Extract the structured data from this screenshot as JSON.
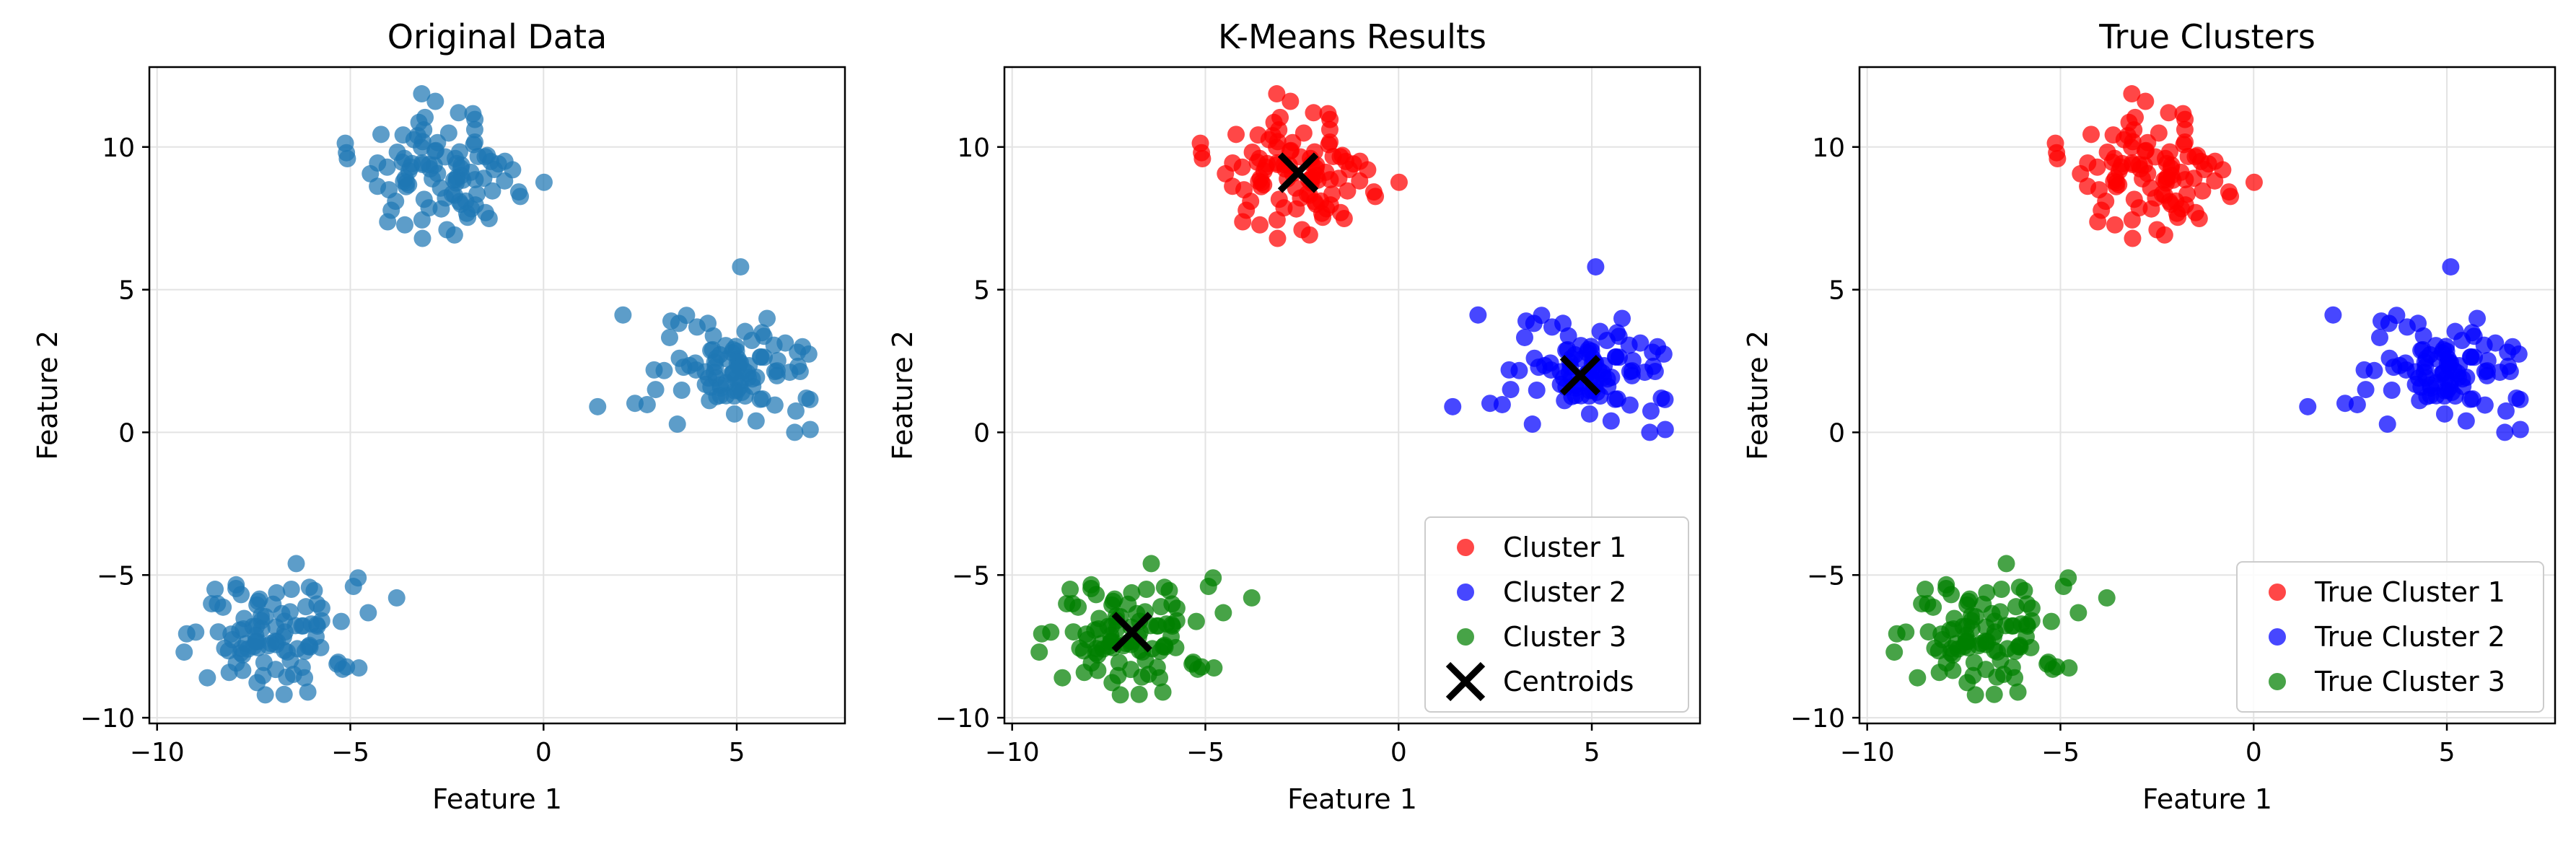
{
  "chart_data": [
    {
      "type": "scatter",
      "title": "Original Data",
      "xlabel": "Feature 1",
      "ylabel": "Feature 2",
      "xlim": [
        -10.2,
        7.8
      ],
      "ylim": [
        -10.2,
        12.8
      ],
      "xticks": [
        -10,
        -5,
        0,
        5
      ],
      "yticks": [
        -10,
        -5,
        0,
        5,
        10
      ],
      "xtick_labels": [
        "−10",
        "−5",
        "0",
        "5"
      ],
      "ytick_labels": [
        "−10",
        "−5",
        "0",
        "5",
        "10"
      ],
      "grid": true,
      "legend": null,
      "series": [
        {
          "color": "#1f77b4",
          "center": [
            -2.6,
            9.0
          ],
          "spread": [
            1.0,
            0.95
          ],
          "points": [
            [
              -5.1,
              9.8
            ],
            [
              -1.0,
              9.5
            ],
            [
              -2.2,
              11.2
            ],
            [
              -3.1,
              10.6
            ],
            [
              -0.8,
              9.2
            ],
            [
              -2.8,
              11.6
            ],
            [
              -4.0,
              8.5
            ],
            [
              -1.5,
              7.7
            ],
            [
              -2.5,
              7.1
            ],
            [
              -3.6,
              9.6
            ]
          ]
        },
        {
          "color": "#1f77b4",
          "center": [
            4.7,
            2.0
          ],
          "spread": [
            0.95,
            0.8
          ],
          "points": [
            [
              5.1,
              5.8
            ],
            [
              1.4,
              0.9
            ],
            [
              6.9,
              0.1
            ],
            [
              6.8,
              1.2
            ],
            [
              3.3,
              3.9
            ],
            [
              2.9,
              1.5
            ],
            [
              6.7,
              3.0
            ],
            [
              5.5,
              0.4
            ],
            [
              3.7,
              4.1
            ],
            [
              6.5,
              0.0
            ]
          ]
        },
        {
          "color": "#1f77b4",
          "center": [
            -6.9,
            -7.1
          ],
          "spread": [
            0.95,
            0.9
          ],
          "points": [
            [
              -3.8,
              -5.8
            ],
            [
              -9.3,
              -7.7
            ],
            [
              -4.8,
              -5.1
            ],
            [
              -7.2,
              -9.2
            ],
            [
              -6.1,
              -9.1
            ],
            [
              -8.5,
              -5.5
            ],
            [
              -6.4,
              -4.6
            ],
            [
              -5.2,
              -8.3
            ],
            [
              -8.7,
              -8.6
            ],
            [
              -9.0,
              -7.0
            ]
          ]
        }
      ]
    },
    {
      "type": "scatter",
      "title": "K-Means Results",
      "xlabel": "Feature 1",
      "ylabel": "Feature 2",
      "xlim": [
        -10.2,
        7.8
      ],
      "ylim": [
        -10.2,
        12.8
      ],
      "xticks": [
        -10,
        -5,
        0,
        5
      ],
      "yticks": [
        -10,
        -5,
        0,
        5,
        10
      ],
      "xtick_labels": [
        "−10",
        "−5",
        "0",
        "5"
      ],
      "ytick_labels": [
        "−10",
        "−5",
        "0",
        "5",
        "10"
      ],
      "grid": true,
      "legend": "lower right",
      "series": [
        {
          "name": "Cluster 1",
          "color": "#ff0000",
          "center": [
            -2.6,
            9.0
          ],
          "spread": [
            1.0,
            0.95
          ],
          "points": [
            [
              -5.1,
              9.8
            ],
            [
              -1.0,
              9.5
            ],
            [
              -2.2,
              11.2
            ],
            [
              -3.1,
              10.6
            ],
            [
              -0.8,
              9.2
            ],
            [
              -2.8,
              11.6
            ],
            [
              -4.0,
              8.5
            ],
            [
              -1.5,
              7.7
            ],
            [
              -2.5,
              7.1
            ],
            [
              -3.6,
              9.6
            ]
          ]
        },
        {
          "name": "Cluster 2",
          "color": "#0000ff",
          "center": [
            4.7,
            2.0
          ],
          "spread": [
            0.95,
            0.8
          ],
          "points": [
            [
              5.1,
              5.8
            ],
            [
              1.4,
              0.9
            ],
            [
              6.9,
              0.1
            ],
            [
              6.8,
              1.2
            ],
            [
              3.3,
              3.9
            ],
            [
              2.9,
              1.5
            ],
            [
              6.7,
              3.0
            ],
            [
              5.5,
              0.4
            ],
            [
              3.7,
              4.1
            ],
            [
              6.5,
              0.0
            ]
          ]
        },
        {
          "name": "Cluster 3",
          "color": "#008000",
          "center": [
            -6.9,
            -7.1
          ],
          "spread": [
            0.95,
            0.9
          ],
          "points": [
            [
              -3.8,
              -5.8
            ],
            [
              -9.3,
              -7.7
            ],
            [
              -4.8,
              -5.1
            ],
            [
              -7.2,
              -9.2
            ],
            [
              -6.1,
              -9.1
            ],
            [
              -8.5,
              -5.5
            ],
            [
              -6.4,
              -4.6
            ],
            [
              -5.2,
              -8.3
            ],
            [
              -8.7,
              -8.6
            ],
            [
              -9.0,
              -7.0
            ]
          ]
        }
      ],
      "centroids": {
        "name": "Centroids",
        "color": "#000000",
        "points": [
          [
            -2.6,
            9.1
          ],
          [
            4.7,
            2.0
          ],
          [
            -6.9,
            -7.0
          ]
        ]
      }
    },
    {
      "type": "scatter",
      "title": "True Clusters",
      "xlabel": "Feature 1",
      "ylabel": "Feature 2",
      "xlim": [
        -10.2,
        7.8
      ],
      "ylim": [
        -10.2,
        12.8
      ],
      "xticks": [
        -10,
        -5,
        0,
        5
      ],
      "yticks": [
        -10,
        -5,
        0,
        5,
        10
      ],
      "xtick_labels": [
        "−10",
        "−5",
        "0",
        "5"
      ],
      "ytick_labels": [
        "−10",
        "−5",
        "0",
        "5",
        "10"
      ],
      "grid": true,
      "legend": "lower right",
      "series": [
        {
          "name": "True Cluster 1",
          "color": "#ff0000",
          "center": [
            -2.6,
            9.0
          ],
          "spread": [
            1.0,
            0.95
          ],
          "points": [
            [
              -5.1,
              9.8
            ],
            [
              -1.0,
              9.5
            ],
            [
              -2.2,
              11.2
            ],
            [
              -3.1,
              10.6
            ],
            [
              -0.8,
              9.2
            ],
            [
              -2.8,
              11.6
            ],
            [
              -4.0,
              8.5
            ],
            [
              -1.5,
              7.7
            ],
            [
              -2.5,
              7.1
            ],
            [
              -3.6,
              9.6
            ]
          ]
        },
        {
          "name": "True Cluster 2",
          "color": "#0000ff",
          "center": [
            4.7,
            2.0
          ],
          "spread": [
            0.95,
            0.8
          ],
          "points": [
            [
              5.1,
              5.8
            ],
            [
              1.4,
              0.9
            ],
            [
              6.9,
              0.1
            ],
            [
              6.8,
              1.2
            ],
            [
              3.3,
              3.9
            ],
            [
              2.9,
              1.5
            ],
            [
              6.7,
              3.0
            ],
            [
              5.5,
              0.4
            ],
            [
              3.7,
              4.1
            ],
            [
              6.5,
              0.0
            ]
          ]
        },
        {
          "name": "True Cluster 3",
          "color": "#008000",
          "center": [
            -6.9,
            -7.1
          ],
          "spread": [
            0.95,
            0.9
          ],
          "points": [
            [
              -3.8,
              -5.8
            ],
            [
              -9.3,
              -7.7
            ],
            [
              -4.8,
              -5.1
            ],
            [
              -7.2,
              -9.2
            ],
            [
              -6.1,
              -9.1
            ],
            [
              -8.5,
              -5.5
            ],
            [
              -6.4,
              -4.6
            ],
            [
              -5.2,
              -8.3
            ],
            [
              -8.7,
              -8.6
            ],
            [
              -9.0,
              -7.0
            ]
          ]
        }
      ]
    }
  ]
}
